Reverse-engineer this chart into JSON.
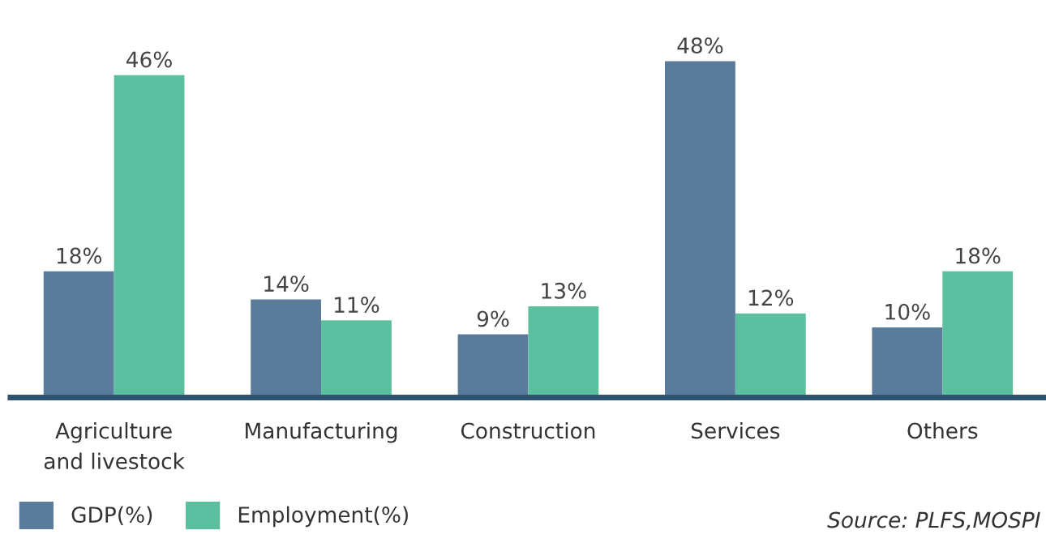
{
  "chart_data": {
    "type": "bar",
    "categories": [
      "Agriculture\nand livestock",
      "Manufacturing",
      "Construction",
      "Services",
      "Others"
    ],
    "series": [
      {
        "name": "GDP(%)",
        "color": "#5a7b99",
        "values": [
          18,
          14,
          9,
          48,
          10
        ],
        "value_labels": [
          "18%",
          "14%",
          "9%",
          "48%",
          "10%"
        ]
      },
      {
        "name": "Employment(%)",
        "color": "#5bbfa0",
        "values": [
          46,
          11,
          13,
          12,
          18
        ],
        "value_labels": [
          "46%",
          "11%",
          "13%",
          "12%",
          "18%"
        ]
      }
    ],
    "legend": "bottom left",
    "grid": false,
    "annotations": [
      "Source: PLFS,MOSPI"
    ]
  }
}
